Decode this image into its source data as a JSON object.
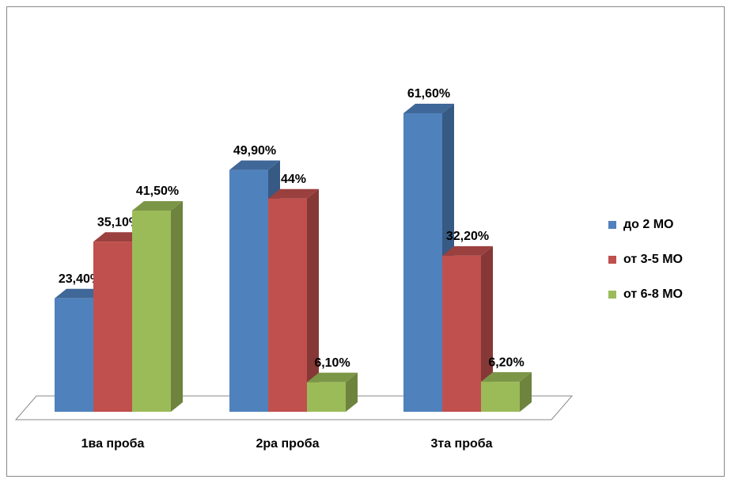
{
  "chart_data": {
    "type": "bar3d",
    "categories": [
      "1ва проба",
      "2ра проба",
      "3та проба"
    ],
    "series": [
      {
        "name": "до 2 МО",
        "color": "#4f81bd",
        "values": [
          23.4,
          49.9,
          61.6
        ],
        "value_labels": [
          "23,40%",
          "49,90%",
          "61,60%"
        ]
      },
      {
        "name": "от 3-5 МО",
        "color": "#c0504d",
        "values": [
          35.1,
          44,
          32.2
        ],
        "value_labels": [
          "35,10%",
          "44%",
          "32,20%"
        ]
      },
      {
        "name": "от 6-8 МО",
        "color": "#9bbb59",
        "values": [
          41.5,
          6.1,
          6.2
        ],
        "value_labels": [
          "41,50%",
          "6,10%",
          "6,20%"
        ]
      }
    ],
    "legend": "right"
  }
}
